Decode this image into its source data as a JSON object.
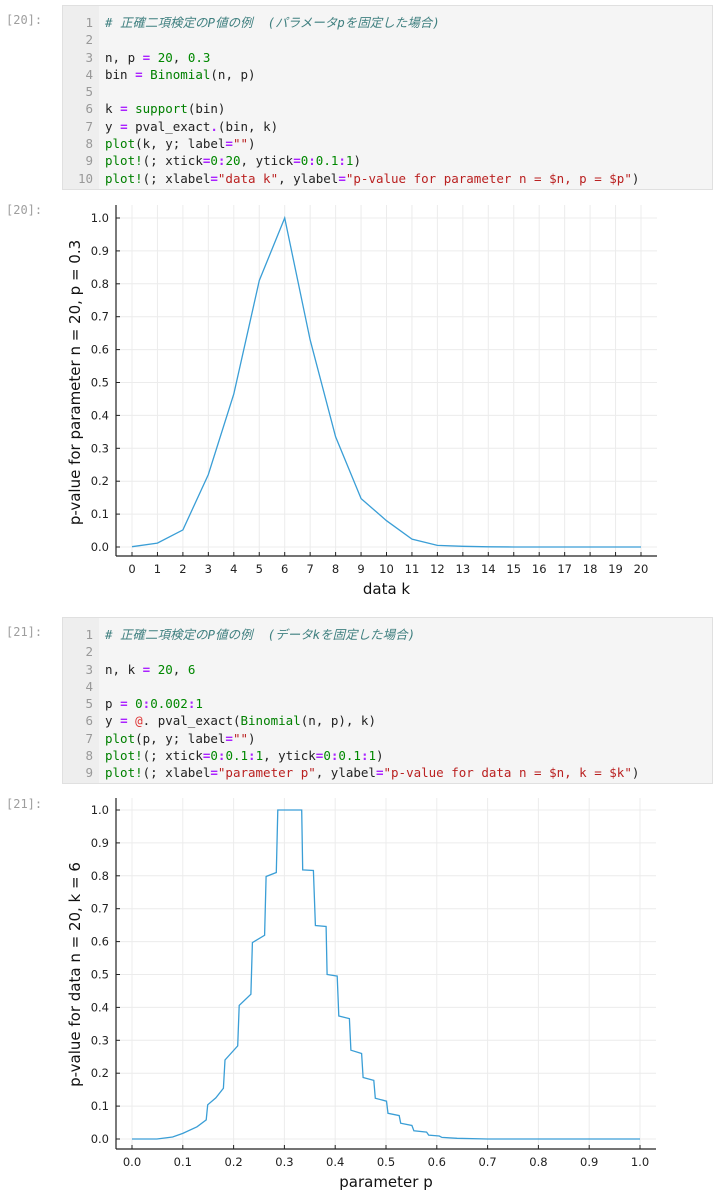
{
  "cells": [
    {
      "prompt_in": "[20]:",
      "prompt_out": "[20]:",
      "code": [
        [
          [
            "# 正確二項検定のP値の例  (パラメータpを固定した場合)",
            "comment"
          ]
        ],
        [],
        [
          [
            "n, p ",
            ""
          ],
          [
            "=",
            "op"
          ],
          [
            " ",
            ""
          ],
          [
            "20",
            "num"
          ],
          [
            ", ",
            ""
          ],
          [
            "0.3",
            "num"
          ]
        ],
        [
          [
            "bin ",
            ""
          ],
          [
            "=",
            "op"
          ],
          [
            " ",
            ""
          ],
          [
            "Binomial",
            "fn"
          ],
          [
            "(n, p)",
            ""
          ]
        ],
        [],
        [
          [
            "k ",
            ""
          ],
          [
            "=",
            "op"
          ],
          [
            " ",
            ""
          ],
          [
            "support",
            "fn"
          ],
          [
            "(bin)",
            ""
          ]
        ],
        [
          [
            "y ",
            ""
          ],
          [
            "=",
            "op"
          ],
          [
            " pval_exact",
            ""
          ],
          [
            ".",
            "op"
          ],
          [
            "(bin, k)",
            ""
          ]
        ],
        [
          [
            "plot",
            "fn"
          ],
          [
            "(k, y; label",
            ""
          ],
          [
            "=",
            "op"
          ],
          [
            "\"\"",
            "str"
          ],
          [
            ")",
            ""
          ]
        ],
        [
          [
            "plot!",
            "fn"
          ],
          [
            "(; xtick",
            ""
          ],
          [
            "=",
            "op"
          ],
          [
            "0",
            "num"
          ],
          [
            ":",
            "op"
          ],
          [
            "20",
            "num"
          ],
          [
            ", ytick",
            ""
          ],
          [
            "=",
            "op"
          ],
          [
            "0",
            "num"
          ],
          [
            ":",
            "op"
          ],
          [
            "0.1",
            "num"
          ],
          [
            ":",
            "op"
          ],
          [
            "1",
            "num"
          ],
          [
            ")",
            ""
          ]
        ],
        [
          [
            "plot!",
            "fn"
          ],
          [
            "(; xlabel",
            ""
          ],
          [
            "=",
            "op"
          ],
          [
            "\"data k\"",
            "str"
          ],
          [
            ", ylabel",
            ""
          ],
          [
            "=",
            "op"
          ],
          [
            "\"p-value for parameter n = $n, p = $p\"",
            "str"
          ],
          [
            ")",
            ""
          ]
        ]
      ]
    },
    {
      "prompt_in": "[21]:",
      "prompt_out": "[21]:",
      "code": [
        [
          [
            "# 正確二項検定のP値の例  (データkを固定した場合)",
            "comment"
          ]
        ],
        [],
        [
          [
            "n, k ",
            ""
          ],
          [
            "=",
            "op"
          ],
          [
            " ",
            ""
          ],
          [
            "20",
            "num"
          ],
          [
            ", ",
            ""
          ],
          [
            "6",
            "num"
          ]
        ],
        [],
        [
          [
            "p ",
            ""
          ],
          [
            "=",
            "op"
          ],
          [
            " ",
            ""
          ],
          [
            "0",
            "num"
          ],
          [
            ":",
            "op"
          ],
          [
            "0.002",
            "num"
          ],
          [
            ":",
            "op"
          ],
          [
            "1",
            "num"
          ]
        ],
        [
          [
            "y ",
            ""
          ],
          [
            "=",
            "op"
          ],
          [
            " ",
            ""
          ],
          [
            "@",
            "macro"
          ],
          [
            ". pval_exact(",
            ""
          ],
          [
            "Binomial",
            "fn"
          ],
          [
            "(n, p), k)",
            ""
          ]
        ],
        [
          [
            "plot",
            "fn"
          ],
          [
            "(p, y; label",
            ""
          ],
          [
            "=",
            "op"
          ],
          [
            "\"\"",
            "str"
          ],
          [
            ")",
            ""
          ]
        ],
        [
          [
            "plot!",
            "fn"
          ],
          [
            "(; xtick",
            ""
          ],
          [
            "=",
            "op"
          ],
          [
            "0",
            "num"
          ],
          [
            ":",
            "op"
          ],
          [
            "0.1",
            "num"
          ],
          [
            ":",
            "op"
          ],
          [
            "1",
            "num"
          ],
          [
            ", ytick",
            ""
          ],
          [
            "=",
            "op"
          ],
          [
            "0",
            "num"
          ],
          [
            ":",
            "op"
          ],
          [
            "0.1",
            "num"
          ],
          [
            ":",
            "op"
          ],
          [
            "1",
            "num"
          ],
          [
            ")",
            ""
          ]
        ],
        [
          [
            "plot!",
            "fn"
          ],
          [
            "(; xlabel",
            ""
          ],
          [
            "=",
            "op"
          ],
          [
            "\"parameter p\"",
            "str"
          ],
          [
            ", ylabel",
            ""
          ],
          [
            "=",
            "op"
          ],
          [
            "\"p-value for data n = $n, k = $k\"",
            "str"
          ],
          [
            ")",
            ""
          ]
        ]
      ]
    }
  ],
  "chart_data": [
    {
      "type": "line",
      "xlabel": "data k",
      "ylabel": "p-value for parameter n = 20, p = 0.3",
      "xlim": [
        0,
        20
      ],
      "ylim": [
        0,
        1
      ],
      "xticks": [
        "0",
        "1",
        "2",
        "3",
        "4",
        "5",
        "6",
        "7",
        "8",
        "9",
        "10",
        "11",
        "12",
        "13",
        "14",
        "15",
        "16",
        "17",
        "18",
        "19",
        "20"
      ],
      "yticks": [
        "0.0",
        "0.1",
        "0.2",
        "0.3",
        "0.4",
        "0.5",
        "0.6",
        "0.7",
        "0.8",
        "0.9",
        "1.0"
      ],
      "grid": true,
      "line_color": "#3a9ed6",
      "x": [
        0,
        1,
        2,
        3,
        4,
        5,
        6,
        7,
        8,
        9,
        10,
        11,
        12,
        13,
        14,
        15,
        16,
        17,
        18,
        19,
        20
      ],
      "y": [
        0.0008,
        0.012,
        0.052,
        0.22,
        0.465,
        0.81,
        1.0,
        0.63,
        0.335,
        0.147,
        0.08,
        0.024,
        0.005,
        0.002,
        0.0005,
        0,
        0,
        0,
        0,
        0,
        0
      ]
    },
    {
      "type": "line",
      "xlabel": "parameter p",
      "ylabel": "p-value for data n = 20, k = 6",
      "xlim": [
        0,
        1
      ],
      "ylim": [
        0,
        1
      ],
      "xticks": [
        "0.0",
        "0.1",
        "0.2",
        "0.3",
        "0.4",
        "0.5",
        "0.6",
        "0.7",
        "0.8",
        "0.9",
        "1.0"
      ],
      "yticks": [
        "0.0",
        "0.1",
        "0.2",
        "0.3",
        "0.4",
        "0.5",
        "0.6",
        "0.7",
        "0.8",
        "0.9",
        "1.0"
      ],
      "grid": true,
      "line_color": "#3a9ed6",
      "x": [
        0,
        0.049,
        0.08,
        0.1,
        0.128,
        0.146,
        0.149,
        0.165,
        0.18,
        0.183,
        0.208,
        0.211,
        0.234,
        0.237,
        0.261,
        0.264,
        0.284,
        0.287,
        0.334,
        0.336,
        0.357,
        0.361,
        0.382,
        0.384,
        0.404,
        0.407,
        0.428,
        0.431,
        0.452,
        0.455,
        0.476,
        0.479,
        0.501,
        0.504,
        0.526,
        0.529,
        0.551,
        0.555,
        0.58,
        0.584,
        0.605,
        0.61,
        0.64,
        0.7,
        1.0
      ],
      "y": [
        0,
        0,
        0.006,
        0.017,
        0.037,
        0.058,
        0.104,
        0.125,
        0.154,
        0.24,
        0.283,
        0.406,
        0.44,
        0.597,
        0.619,
        0.798,
        0.81,
        1.0,
        1.0,
        0.818,
        0.816,
        0.649,
        0.646,
        0.5,
        0.495,
        0.374,
        0.366,
        0.27,
        0.26,
        0.187,
        0.178,
        0.124,
        0.115,
        0.078,
        0.071,
        0.048,
        0.041,
        0.025,
        0.021,
        0.012,
        0.009,
        0.005,
        0.002,
        0,
        0
      ]
    }
  ]
}
